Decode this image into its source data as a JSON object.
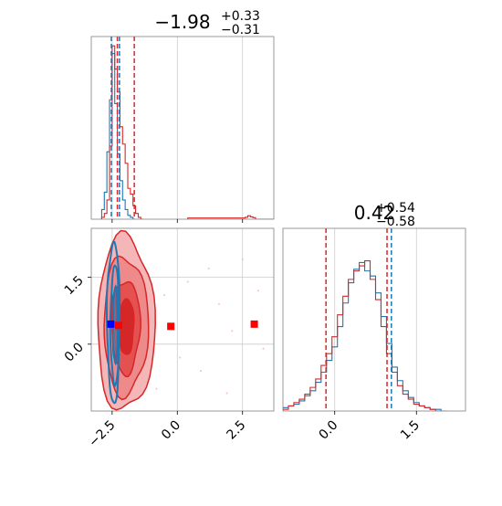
{
  "figure": {
    "colors": {
      "blue": "#1f77b4",
      "red": "#d62728",
      "red_fill_light": "#f4b6b6",
      "red_fill_mid": "#ea6d6d",
      "red_fill_dark": "#d62728",
      "marker_red": "#ff0000",
      "marker_blue": "#0000ff",
      "grid": "#cccccc",
      "frame": "#808080"
    }
  },
  "chart_data": [
    {
      "id": "hist_param1",
      "type": "histogram",
      "title": {
        "main": "−1.98",
        "sup": "+0.33",
        "sub": "−0.31"
      },
      "xlim": [
        -3.3,
        3.7
      ],
      "grid": true,
      "series": [
        {
          "name": "",
          "color": "#1f77b4",
          "bins": [
            -2.9,
            -2.8,
            -2.7,
            -2.6,
            -2.5,
            -2.4,
            -2.3,
            -2.2,
            -2.1,
            -2.0,
            -1.9,
            -1.8,
            -1.7
          ],
          "counts": [
            0.05,
            0.14,
            0.35,
            0.62,
            0.86,
            0.6,
            0.34,
            0.2,
            0.1,
            0.05,
            0.02,
            0.01,
            0.0
          ]
        },
        {
          "name": "",
          "color": "#d62728",
          "bins": [
            -2.9,
            -2.8,
            -2.7,
            -2.6,
            -2.5,
            -2.4,
            -2.3,
            -2.2,
            -2.1,
            -2.0,
            -1.9,
            -1.8,
            -1.7,
            -1.6,
            -1.5,
            -1.4
          ],
          "counts": [
            0.01,
            0.03,
            0.1,
            0.38,
            0.9,
            0.78,
            0.66,
            0.48,
            0.39,
            0.29,
            0.16,
            0.13,
            0.07,
            0.03,
            0.01,
            0.0
          ]
        },
        {
          "name": "",
          "color": "#d62728",
          "bins": [
            0.4,
            2.6,
            2.7,
            2.8,
            2.9,
            3.0
          ],
          "counts": [
            0.006,
            0.01,
            0.018,
            0.012,
            0.008,
            0.0
          ]
        }
      ],
      "vlines": [
        {
          "x": -2.53,
          "color": "#1f77b4",
          "dash": true
        },
        {
          "x": -2.22,
          "color": "#1f77b4",
          "dash": true
        },
        {
          "x": -2.3,
          "color": "#d62728",
          "dash": true
        },
        {
          "x": -1.65,
          "color": "#d62728",
          "dash": true
        }
      ]
    },
    {
      "id": "hist_param2",
      "type": "histogram",
      "title": {
        "main": "0.42",
        "sup": "+0.54",
        "sub": "−0.58"
      },
      "xlim": [
        -0.95,
        2.4
      ],
      "xticks": [
        0.0,
        1.5
      ],
      "xticklabels": [
        "0.0",
        "1.5"
      ],
      "grid": true,
      "series": [
        {
          "name": "",
          "color": "#1f77b4",
          "bins": [
            -0.95,
            -0.85,
            -0.75,
            -0.65,
            -0.55,
            -0.45,
            -0.35,
            -0.25,
            -0.15,
            -0.05,
            0.05,
            0.15,
            0.25,
            0.35,
            0.45,
            0.55,
            0.65,
            0.75,
            0.85,
            0.95,
            1.05,
            1.15,
            1.25,
            1.35,
            1.45,
            1.55,
            1.65,
            1.75,
            1.85,
            1.95
          ],
          "counts": [
            0.02,
            0.03,
            0.04,
            0.06,
            0.09,
            0.12,
            0.17,
            0.23,
            0.3,
            0.38,
            0.5,
            0.64,
            0.76,
            0.84,
            0.88,
            0.83,
            0.8,
            0.7,
            0.56,
            0.4,
            0.26,
            0.18,
            0.12,
            0.08,
            0.05,
            0.03,
            0.02,
            0.01,
            0.01,
            0.0
          ]
        },
        {
          "name": "",
          "color": "#d62728",
          "bins": [
            -0.95,
            -0.85,
            -0.75,
            -0.65,
            -0.55,
            -0.45,
            -0.35,
            -0.25,
            -0.15,
            -0.05,
            0.05,
            0.15,
            0.25,
            0.35,
            0.45,
            0.55,
            0.65,
            0.75,
            0.85,
            0.95,
            1.05,
            1.15,
            1.25,
            1.35,
            1.45,
            1.55,
            1.65,
            1.75,
            1.85,
            1.95
          ],
          "counts": [
            0.01,
            0.03,
            0.05,
            0.07,
            0.1,
            0.14,
            0.19,
            0.27,
            0.34,
            0.44,
            0.57,
            0.68,
            0.78,
            0.83,
            0.86,
            0.89,
            0.78,
            0.66,
            0.5,
            0.34,
            0.23,
            0.15,
            0.1,
            0.07,
            0.04,
            0.03,
            0.02,
            0.01,
            0.0,
            0.0
          ]
        }
      ],
      "vlines": [
        {
          "x": -0.16,
          "color": "#d62728",
          "dash": true
        },
        {
          "x": 0.96,
          "color": "#d62728",
          "dash": true
        },
        {
          "x": 1.04,
          "color": "#1f77b4",
          "dash": true
        }
      ]
    },
    {
      "id": "joint_param1_param2",
      "type": "contour",
      "xlim": [
        -3.3,
        3.7
      ],
      "ylim": [
        -1.5,
        2.6
      ],
      "xticks": [
        -2.5,
        0.0,
        2.5
      ],
      "xticklabels": [
        "−2.5",
        "0.0",
        "2.5"
      ],
      "yticks": [
        0.0,
        1.5
      ],
      "yticklabels": [
        "0.0",
        "1.5"
      ],
      "grid": true,
      "red_levels": [
        {
          "cx": -1.98,
          "cy": 0.45,
          "rx": 1.1,
          "ry": 1.95,
          "fill": "#f4b6b6"
        },
        {
          "cx": -1.98,
          "cy": 0.42,
          "rx": 0.85,
          "ry": 1.55,
          "fill": "#ee8a8a"
        },
        {
          "cx": -1.98,
          "cy": 0.4,
          "rx": 0.55,
          "ry": 1.05,
          "fill": "#e55050"
        },
        {
          "cx": -1.98,
          "cy": 0.4,
          "rx": 0.32,
          "ry": 0.62,
          "fill": "#d62728"
        }
      ],
      "blue_levels": [
        {
          "cx": -2.45,
          "cy": 0.5,
          "rx": 0.24,
          "ry": 1.8
        },
        {
          "cx": -2.4,
          "cy": 0.42,
          "rx": 0.16,
          "ry": 1.35
        },
        {
          "cx": -2.38,
          "cy": 0.4,
          "rx": 0.09,
          "ry": 0.85
        }
      ],
      "markers": [
        {
          "x": -2.55,
          "y": 0.45,
          "color": "#0000ff"
        },
        {
          "x": -2.25,
          "y": 0.42,
          "color": "#ff0000"
        },
        {
          "x": -0.25,
          "y": 0.4,
          "color": "#ff0000"
        },
        {
          "x": 2.95,
          "y": 0.45,
          "color": "#ff0000"
        }
      ],
      "scatter_red": [
        [
          -0.5,
          1.1
        ],
        [
          0.1,
          -0.3
        ],
        [
          1.6,
          0.9
        ],
        [
          2.5,
          1.9
        ],
        [
          0.9,
          -0.6
        ],
        [
          3.3,
          -0.1
        ],
        [
          1.2,
          1.7
        ],
        [
          -0.8,
          -1.0
        ],
        [
          2.1,
          0.3
        ],
        [
          3.1,
          1.2
        ],
        [
          0.4,
          1.4
        ],
        [
          1.9,
          -1.1
        ],
        [
          -1.2,
          1.6
        ]
      ]
    }
  ]
}
